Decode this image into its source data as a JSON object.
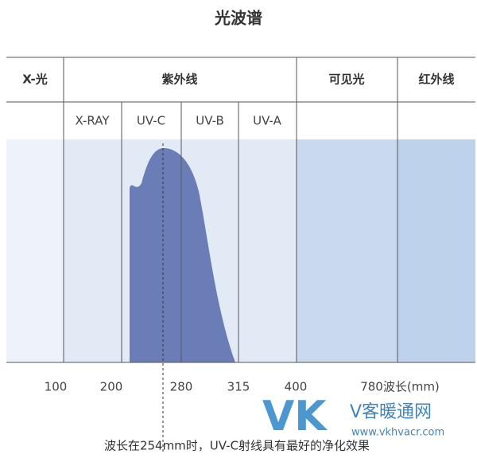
{
  "title": "光波谱",
  "header_row": [
    "X-光",
    "紫外线",
    "可见光",
    "红外线"
  ],
  "sub_row": [
    "X-RAY",
    "UV-C",
    "UV-B",
    "UV-A"
  ],
  "axis_labels": [
    "100",
    "200",
    "280",
    "315",
    "400",
    "780波长(mm)"
  ],
  "caption": "波长在254mm时，UV-C射线具有最好的净化效果",
  "watermark": {
    "logo": "VK",
    "name": "V客暖通网",
    "url": "www.vkhvacr.com"
  }
}
